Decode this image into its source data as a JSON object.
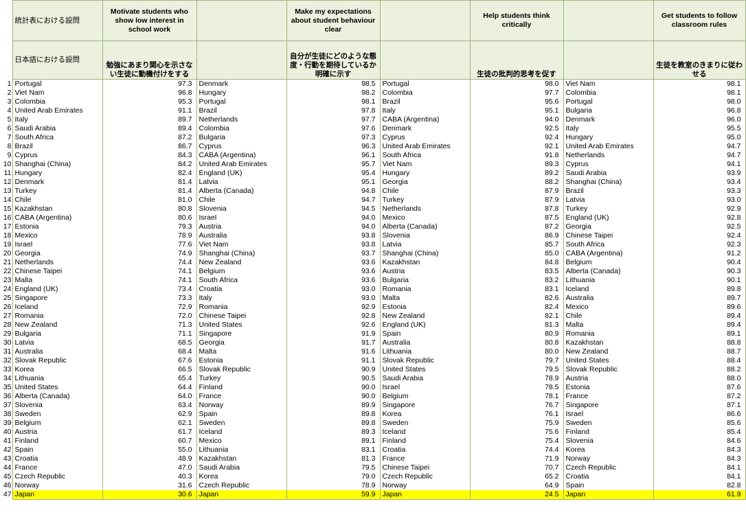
{
  "header": {
    "row1_label": "統計表における設問",
    "row2_label": "日本語における設問",
    "questions": [
      {
        "en": "Motivate students who show low interest in school work",
        "jp": "勉強にあまり関心を示さない生徒に動機付けをする"
      },
      {
        "en": "Make my expectations about student behaviour clear",
        "jp": "自分が生徒にどのような態度・行動を期待しているか明確に示す"
      },
      {
        "en": "Help students think critically",
        "jp": "生徒の批判的思考を促す"
      },
      {
        "en": "Get students to follow classroom rules",
        "jp": "生徒を教室のきまりに従わせる"
      }
    ]
  },
  "highlight_color": "#ffff00",
  "rows": [
    {
      "rank": "1",
      "c1": "Portugal",
      "v1": "97.3",
      "c2": "Denmark",
      "v2": "98.5",
      "c3": "Portugal",
      "v3": "98.0",
      "c4": "Viet Nam",
      "v4": "98.1"
    },
    {
      "rank": "2",
      "c1": "Viet Nam",
      "v1": "96.8",
      "c2": "Hungary",
      "v2": "98.2",
      "c3": "Colombia",
      "v3": "97.7",
      "c4": "Colombia",
      "v4": "98.1"
    },
    {
      "rank": "3",
      "c1": "Colombia",
      "v1": "95.3",
      "c2": "Portugal",
      "v2": "98.1",
      "c3": "Brazil",
      "v3": "95.6",
      "c4": "Portugal",
      "v4": "98.0"
    },
    {
      "rank": "4",
      "c1": "United Arab Emirates",
      "v1": "91.1",
      "c2": "Brazil",
      "v2": "97.8",
      "c3": "Italy",
      "v3": "95.1",
      "c4": "Bulgaria",
      "v4": "96.8"
    },
    {
      "rank": "5",
      "c1": "Italy",
      "v1": "89.7",
      "c2": "Netherlands",
      "v2": "97.7",
      "c3": "CABA (Argentina)",
      "v3": "94.0",
      "c4": "Denmark",
      "v4": "96.0"
    },
    {
      "rank": "6",
      "c1": "Saudi Arabia",
      "v1": "89.4",
      "c2": "Colombia",
      "v2": "97.6",
      "c3": "Denmark",
      "v3": "92.5",
      "c4": "Italy",
      "v4": "95.5"
    },
    {
      "rank": "7",
      "c1": "South Africa",
      "v1": "87.2",
      "c2": "Bulgaria",
      "v2": "97.3",
      "c3": "Cyprus",
      "v3": "92.4",
      "c4": "Hungary",
      "v4": "95.0"
    },
    {
      "rank": "8",
      "c1": "Brazil",
      "v1": "86.7",
      "c2": "Cyprus",
      "v2": "96.3",
      "c3": "United Arab Emirates",
      "v3": "92.1",
      "c4": "United Arab Emirates",
      "v4": "94.7"
    },
    {
      "rank": "9",
      "c1": "Cyprus",
      "v1": "84.3",
      "c2": "CABA (Argentina)",
      "v2": "96.1",
      "c3": "South Africa",
      "v3": "91.8",
      "c4": "Netherlands",
      "v4": "94.7"
    },
    {
      "rank": "10",
      "c1": "Shanghai (China)",
      "v1": "84.2",
      "c2": "United Arab Emirates",
      "v2": "95.7",
      "c3": "Viet Nam",
      "v3": "89.3",
      "c4": "Cyprus",
      "v4": "94.1"
    },
    {
      "rank": "11",
      "c1": "Hungary",
      "v1": "82.4",
      "c2": "England (UK)",
      "v2": "95.4",
      "c3": "Hungary",
      "v3": "89.2",
      "c4": "Saudi Arabia",
      "v4": "93.9"
    },
    {
      "rank": "12",
      "c1": "Denmark",
      "v1": "81.4",
      "c2": "Latvia",
      "v2": "95.1",
      "c3": "Georgia",
      "v3": "88.2",
      "c4": "Shanghai (China)",
      "v4": "93.4"
    },
    {
      "rank": "13",
      "c1": "Turkey",
      "v1": "81.4",
      "c2": "Alberta (Canada)",
      "v2": "94.8",
      "c3": "Chile",
      "v3": "87.9",
      "c4": "Brazil",
      "v4": "93.3"
    },
    {
      "rank": "14",
      "c1": "Chile",
      "v1": "81.0",
      "c2": "Chile",
      "v2": "94.7",
      "c3": "Turkey",
      "v3": "87.9",
      "c4": "Latvia",
      "v4": "93.0"
    },
    {
      "rank": "15",
      "c1": "Kazakhstan",
      "v1": "80.8",
      "c2": "Slovenia",
      "v2": "94.5",
      "c3": "Netherlands",
      "v3": "87.8",
      "c4": "Turkey",
      "v4": "92.9"
    },
    {
      "rank": "16",
      "c1": "CABA (Argentina)",
      "v1": "80.6",
      "c2": "Israel",
      "v2": "94.0",
      "c3": "Mexico",
      "v3": "87.5",
      "c4": "England (UK)",
      "v4": "92.8"
    },
    {
      "rank": "17",
      "c1": "Estonia",
      "v1": "79.3",
      "c2": "Austria",
      "v2": "94.0",
      "c3": "Alberta (Canada)",
      "v3": "87.2",
      "c4": "Georgia",
      "v4": "92.5"
    },
    {
      "rank": "18",
      "c1": "Mexico",
      "v1": "78.9",
      "c2": "Australia",
      "v2": "93.8",
      "c3": "Slovenia",
      "v3": "86.9",
      "c4": "Chinese Taipei",
      "v4": "92.4"
    },
    {
      "rank": "19",
      "c1": "Israel",
      "v1": "77.6",
      "c2": "Viet Nam",
      "v2": "93.8",
      "c3": "Latvia",
      "v3": "85.7",
      "c4": "South Africa",
      "v4": "92.3"
    },
    {
      "rank": "20",
      "c1": "Georgia",
      "v1": "74.9",
      "c2": "Shanghai (China)",
      "v2": "93.7",
      "c3": "Shanghai (China)",
      "v3": "85.0",
      "c4": "CABA (Argentina)",
      "v4": "91.2"
    },
    {
      "rank": "21",
      "c1": "Netherlands",
      "v1": "74.4",
      "c2": "New Zealand",
      "v2": "93.6",
      "c3": "Kazakhstan",
      "v3": "84.8",
      "c4": "Belgium",
      "v4": "90.4"
    },
    {
      "rank": "22",
      "c1": "Chinese Taipei",
      "v1": "74.1",
      "c2": "Belgium",
      "v2": "93.6",
      "c3": "Austria",
      "v3": "83.5",
      "c4": "Alberta (Canada)",
      "v4": "90.3"
    },
    {
      "rank": "23",
      "c1": "Malta",
      "v1": "74.1",
      "c2": "South Africa",
      "v2": "93.6",
      "c3": "Bulgaria",
      "v3": "83.2",
      "c4": "Lithuania",
      "v4": "90.1"
    },
    {
      "rank": "24",
      "c1": "England (UK)",
      "v1": "73.4",
      "c2": "Croatia",
      "v2": "93.0",
      "c3": "Romania",
      "v3": "83.1",
      "c4": "Iceland",
      "v4": "89.8"
    },
    {
      "rank": "25",
      "c1": "Singapore",
      "v1": "73.3",
      "c2": "Italy",
      "v2": "93.0",
      "c3": "Malta",
      "v3": "82.6",
      "c4": "Australia",
      "v4": "89.7"
    },
    {
      "rank": "26",
      "c1": "Iceland",
      "v1": "72.9",
      "c2": "Romania",
      "v2": "92.9",
      "c3": "Estonia",
      "v3": "82.4",
      "c4": "Mexico",
      "v4": "89.6"
    },
    {
      "rank": "27",
      "c1": "Romania",
      "v1": "72.0",
      "c2": "Chinese Taipei",
      "v2": "92.8",
      "c3": "New Zealand",
      "v3": "82.1",
      "c4": "Chile",
      "v4": "89.4"
    },
    {
      "rank": "28",
      "c1": "New Zealand",
      "v1": "71.3",
      "c2": "United States",
      "v2": "92.6",
      "c3": "England (UK)",
      "v3": "81.3",
      "c4": "Malta",
      "v4": "89.4"
    },
    {
      "rank": "29",
      "c1": "Bulgaria",
      "v1": "71.1",
      "c2": "Singapore",
      "v2": "91.9",
      "c3": "Spain",
      "v3": "80.9",
      "c4": "Romania",
      "v4": "89.1"
    },
    {
      "rank": "30",
      "c1": "Latvia",
      "v1": "68.5",
      "c2": "Georgia",
      "v2": "91.7",
      "c3": "Australia",
      "v3": "80.8",
      "c4": "Kazakhstan",
      "v4": "88.8"
    },
    {
      "rank": "31",
      "c1": "Australia",
      "v1": "68.4",
      "c2": "Malta",
      "v2": "91.6",
      "c3": "Lithuania",
      "v3": "80.0",
      "c4": "New Zealand",
      "v4": "88.7"
    },
    {
      "rank": "32",
      "c1": "Slovak Republic",
      "v1": "67.6",
      "c2": "Estonia",
      "v2": "91.1",
      "c3": "Slovak Republic",
      "v3": "79.7",
      "c4": "United States",
      "v4": "88.4"
    },
    {
      "rank": "33",
      "c1": "Korea",
      "v1": "66.5",
      "c2": "Slovak Republic",
      "v2": "90.9",
      "c3": "United States",
      "v3": "79.5",
      "c4": "Slovak Republic",
      "v4": "88.2"
    },
    {
      "rank": "34",
      "c1": "Lithuania",
      "v1": "65.4",
      "c2": "Turkey",
      "v2": "90.5",
      "c3": "Saudi Arabia",
      "v3": "78.9",
      "c4": "Austria",
      "v4": "88.0"
    },
    {
      "rank": "35",
      "c1": "United States",
      "v1": "64.4",
      "c2": "Finland",
      "v2": "90.0",
      "c3": "Israel",
      "v3": "78.5",
      "c4": "Estonia",
      "v4": "87.6"
    },
    {
      "rank": "36",
      "c1": "Alberta (Canada)",
      "v1": "64.0",
      "c2": "France",
      "v2": "90.0",
      "c3": "Belgium",
      "v3": "78.1",
      "c4": "France",
      "v4": "87.2"
    },
    {
      "rank": "37",
      "c1": "Slovenia",
      "v1": "63.4",
      "c2": "Norway",
      "v2": "89.9",
      "c3": "Singapore",
      "v3": "76.7",
      "c4": "Singapore",
      "v4": "87.1"
    },
    {
      "rank": "38",
      "c1": "Sweden",
      "v1": "62.9",
      "c2": "Spain",
      "v2": "89.8",
      "c3": "Korea",
      "v3": "76.1",
      "c4": "Israel",
      "v4": "86.6"
    },
    {
      "rank": "39",
      "c1": "Belgium",
      "v1": "62.1",
      "c2": "Sweden",
      "v2": "89.8",
      "c3": "Sweden",
      "v3": "75.9",
      "c4": "Sweden",
      "v4": "85.6"
    },
    {
      "rank": "40",
      "c1": "Austria",
      "v1": "61.7",
      "c2": "Iceland",
      "v2": "89.3",
      "c3": "Iceland",
      "v3": "75.6",
      "c4": "Finland",
      "v4": "85.4"
    },
    {
      "rank": "41",
      "c1": "Finland",
      "v1": "60.7",
      "c2": "Mexico",
      "v2": "89.1",
      "c3": "Finland",
      "v3": "75.4",
      "c4": "Slovenia",
      "v4": "84.6"
    },
    {
      "rank": "42",
      "c1": "Spain",
      "v1": "55.0",
      "c2": "Lithuania",
      "v2": "83.1",
      "c3": "Croatia",
      "v3": "74.4",
      "c4": "Korea",
      "v4": "84.3"
    },
    {
      "rank": "43",
      "c1": "Croatia",
      "v1": "48.9",
      "c2": "Kazakhstan",
      "v2": "81.3",
      "c3": "France",
      "v3": "71.9",
      "c4": "Norway",
      "v4": "84.3"
    },
    {
      "rank": "44",
      "c1": "France",
      "v1": "47.0",
      "c2": "Saudi Arabia",
      "v2": "79.5",
      "c3": "Chinese Taipei",
      "v3": "70.7",
      "c4": "Czech Republic",
      "v4": "84.1"
    },
    {
      "rank": "45",
      "c1": "Czech Republic",
      "v1": "40.3",
      "c2": "Korea",
      "v2": "79.0",
      "c3": "Czech Republic",
      "v3": "65.2",
      "c4": "Croatia",
      "v4": "84.1"
    },
    {
      "rank": "46",
      "c1": "Norway",
      "v1": "31.6",
      "c2": "Czech Republic",
      "v2": "78.9",
      "c3": "Norway",
      "v3": "64.9",
      "c4": "Spain",
      "v4": "82.8"
    },
    {
      "rank": "47",
      "c1": "Japan",
      "v1": "30.6",
      "c2": "Japan",
      "v2": "59.9",
      "c3": "Japan",
      "v3": "24.5",
      "c4": "Japan",
      "v4": "61.9"
    }
  ]
}
